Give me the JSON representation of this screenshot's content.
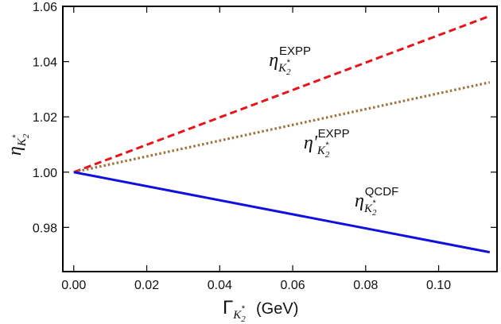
{
  "chart_data": {
    "type": "line",
    "x_axis": {
      "label_symbol": "Γ",
      "label_subscript": "K",
      "label_subscript_sub": "2",
      "label_subscript_sup": "*",
      "label_unit": "(GeV)",
      "xlim": [
        -0.003,
        0.116
      ],
      "ticks": [
        0.0,
        0.02,
        0.04,
        0.06,
        0.08,
        0.1
      ],
      "tick_labels": [
        "0.00",
        "0.02",
        "0.04",
        "0.06",
        "0.08",
        "0.10"
      ]
    },
    "y_axis": {
      "label_symbol": "η",
      "label_subscript": "K",
      "label_subscript_sub": "2",
      "label_subscript_sup": "*",
      "ylim": [
        0.964,
        1.06
      ],
      "ticks": [
        0.98,
        1.0,
        1.02,
        1.04,
        1.06
      ],
      "tick_labels": [
        "0.98",
        "1.00",
        "1.02",
        "1.04",
        "1.06"
      ]
    },
    "grid": false,
    "legend": "none",
    "series": [
      {
        "id": "expp",
        "color": "#e8141a",
        "style": "dashed",
        "x": [
          0.0,
          0.114
        ],
        "y": [
          1.0,
          1.0565
        ]
      },
      {
        "id": "expp-prime",
        "color": "#a0703a",
        "style": "dotted",
        "x": [
          0.0,
          0.114
        ],
        "y": [
          1.0,
          1.0325
        ]
      },
      {
        "id": "qcdf",
        "color": "#1010e0",
        "style": "solid",
        "x": [
          0.0,
          0.114
        ],
        "y": [
          1.0,
          0.971
        ]
      }
    ],
    "annotations": [
      {
        "symbol": "η",
        "sub": "K",
        "subsub": "2",
        "subsup": "*",
        "sup": "EXPP",
        "x": 0.0535,
        "y": 1.0385
      },
      {
        "symbol": "η'",
        "sub": "K",
        "subsub": "2",
        "subsup": "*",
        "sup": "EXPP",
        "x": 0.063,
        "y": 1.0085
      },
      {
        "symbol": "η",
        "sub": "K",
        "subsub": "2",
        "subsup": "*",
        "sup": "QCDF",
        "x": 0.077,
        "y": 0.9875
      }
    ]
  }
}
